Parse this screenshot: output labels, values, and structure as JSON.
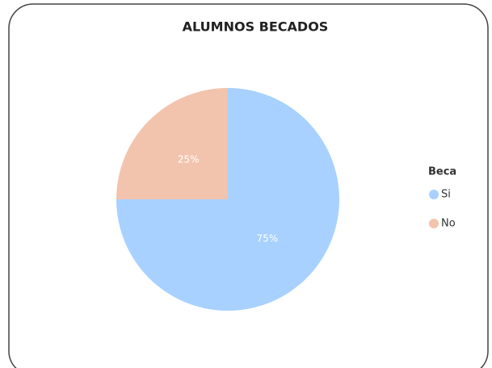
{
  "chart_data": {
    "type": "pie",
    "title": "ALUMNOS BECADOS",
    "legend_title": "Beca",
    "categories": [
      "Si",
      "No"
    ],
    "values": [
      75,
      25
    ],
    "value_labels": [
      "75%",
      "25%"
    ],
    "colors": [
      "#a8d1ff",
      "#f2c4ad"
    ],
    "legend": "right"
  }
}
